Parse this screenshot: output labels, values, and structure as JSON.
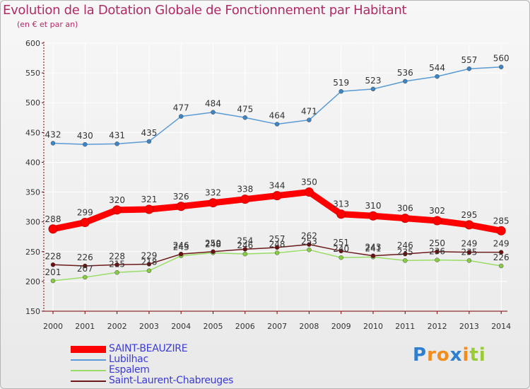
{
  "colors": {
    "title": "#b02a66",
    "axis": "#7a0000",
    "grid": "#ffffff",
    "legend_text": "#3a3ad6"
  },
  "chart_data": {
    "type": "line",
    "title": "Evolution de la Dotation Globale de Fonctionnement par Habitant",
    "subtitle": "(en € et par an)",
    "xlabel": "",
    "ylabel": "",
    "ylim": [
      150,
      600
    ],
    "yticks": [
      150,
      200,
      250,
      300,
      350,
      400,
      450,
      500,
      550,
      600
    ],
    "categories": [
      "2000",
      "2001",
      "2002",
      "2003",
      "2004",
      "2005",
      "2006",
      "2007",
      "2008",
      "2009",
      "2010",
      "2011",
      "2012",
      "2013",
      "2014"
    ],
    "series": [
      {
        "name": "SAINT-BEAUZIRE",
        "color": "#ff0000",
        "marker": "#ff0000",
        "emphasis": true,
        "values": [
          288,
          299,
          320,
          321,
          326,
          332,
          338,
          344,
          350,
          313,
          310,
          306,
          302,
          295,
          285
        ]
      },
      {
        "name": "Lubilhac",
        "color": "#5b9bd5",
        "marker": "#3d86c6",
        "emphasis": false,
        "values": [
          432,
          430,
          431,
          435,
          477,
          484,
          475,
          464,
          471,
          519,
          523,
          536,
          544,
          557,
          560
        ]
      },
      {
        "name": "Espalem",
        "color": "#99dd66",
        "marker": "#88cc44",
        "emphasis": false,
        "values": [
          201,
          207,
          215,
          218,
          243,
          248,
          246,
          248,
          253,
          240,
          241,
          235,
          236,
          235,
          226
        ]
      },
      {
        "name": "Saint-Laurent-Chabreuges",
        "color": "#6b1a1a",
        "marker": "#6b0f0f",
        "emphasis": false,
        "values": [
          228,
          226,
          228,
          229,
          246,
          250,
          254,
          257,
          262,
          251,
          243,
          246,
          250,
          249,
          249
        ]
      }
    ]
  },
  "legend": {
    "items": [
      {
        "label": "SAINT-BEAUZIRE"
      },
      {
        "label": "Lubilhac"
      },
      {
        "label": "Espalem"
      },
      {
        "label": "Saint-Laurent-Chabreuges"
      }
    ]
  },
  "logo": {
    "letters": [
      {
        "ch": "P",
        "color": "#2e7fd0"
      },
      {
        "ch": "r",
        "color": "#f28c1c"
      },
      {
        "ch": "o",
        "color": "#f28c1c"
      },
      {
        "ch": "x",
        "color": "#2e7fd0"
      },
      {
        "ch": "i",
        "color": "#f28c1c"
      },
      {
        "ch": "t",
        "color": "#99cc33"
      },
      {
        "ch": "i",
        "color": "#99cc33"
      }
    ]
  }
}
